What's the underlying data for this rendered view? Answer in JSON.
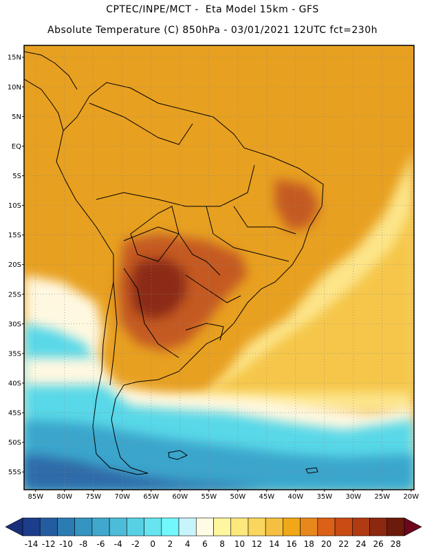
{
  "header": {
    "line1": "CPTEC/INPE/MCT -  Eta Model 15km - GFS",
    "line2": "Absolute Temperature (C) 850hPa - 03/01/2021 12UTC fct=230h"
  },
  "map": {
    "lat_labels": [
      "15N",
      "10N",
      "5N",
      "EQ",
      "5S",
      "10S",
      "15S",
      "20S",
      "25S",
      "30S",
      "35S",
      "40S",
      "45S",
      "50S",
      "55S"
    ],
    "lon_labels": [
      "85W",
      "80W",
      "75W",
      "70W",
      "65W",
      "60W",
      "55W",
      "50W",
      "45W",
      "40W",
      "35W",
      "30W",
      "25W",
      "20W"
    ],
    "extent": {
      "lon_min": -87,
      "lon_max": -19.5,
      "lat_min": -58,
      "lat_max": 17
    },
    "colors": {
      "hot": "#8b2a15",
      "very_warm": "#c45a20",
      "warm": "#e8a020",
      "mild": "#f5c64a",
      "pale": "#fde58a",
      "cream": "#fff8e0",
      "cool": "#58d8e8",
      "cold": "#3aa5cc",
      "deep": "#2e6aa8"
    }
  },
  "colorbar": {
    "labels": [
      "-14",
      "-12",
      "-10",
      "-8",
      "-6",
      "-4",
      "-2",
      "0",
      "2",
      "4",
      "6",
      "8",
      "10",
      "12",
      "14",
      "16",
      "18",
      "20",
      "22",
      "24",
      "26",
      "28"
    ],
    "colors": [
      "#1c3c8c",
      "#245ca0",
      "#2c7cb4",
      "#3594c0",
      "#40a8cc",
      "#4cbcd8",
      "#58d0e4",
      "#66e4f0",
      "#72f8fc",
      "#c8f4fc",
      "#fffbe4",
      "#fff6a0",
      "#fde87c",
      "#fad65e",
      "#f5c040",
      "#f0a818",
      "#e8881c",
      "#dc6018",
      "#c84c14",
      "#b03a12",
      "#8c2810",
      "#6c1a0c"
    ],
    "under_color": "#1a2f7a",
    "over_color": "#6e0620"
  }
}
